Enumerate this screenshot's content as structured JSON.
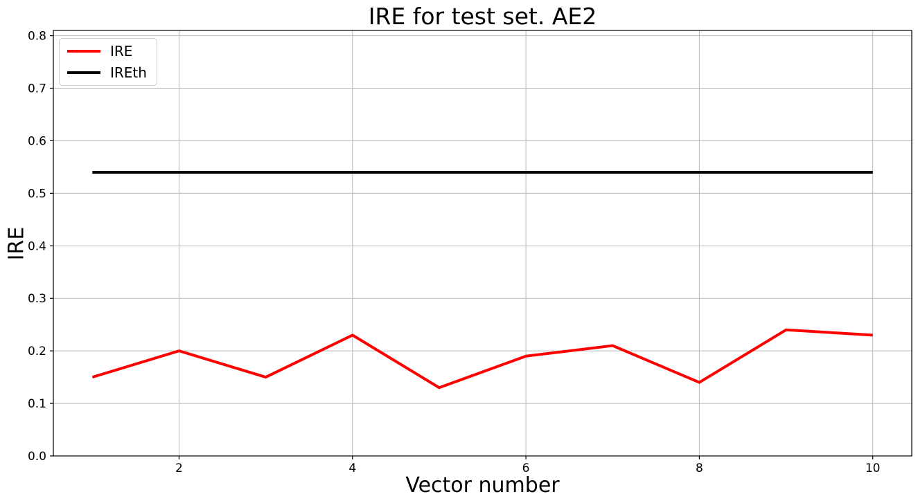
{
  "chart_data": {
    "type": "line",
    "title": "IRE for test set. AE2",
    "xlabel": "Vector number",
    "ylabel": "IRE",
    "x": [
      1,
      2,
      3,
      4,
      5,
      6,
      7,
      8,
      9,
      10
    ],
    "series": [
      {
        "name": "IRE",
        "color": "#ff0000",
        "values": [
          0.15,
          0.2,
          0.15,
          0.23,
          0.13,
          0.19,
          0.21,
          0.14,
          0.24,
          0.23
        ]
      },
      {
        "name": "IREth",
        "color": "#000000",
        "values": [
          0.54,
          0.54,
          0.54,
          0.54,
          0.54,
          0.54,
          0.54,
          0.54,
          0.54,
          0.54
        ]
      }
    ],
    "xlim": [
      0.55,
      10.45
    ],
    "ylim": [
      0,
      0.81
    ],
    "xticks": [
      2,
      4,
      6,
      8,
      10
    ],
    "yticks": [
      0.0,
      0.1,
      0.2,
      0.3,
      0.4,
      0.5,
      0.6,
      0.7,
      0.8
    ],
    "ytick_decimals": 1,
    "grid": true,
    "grid_color": "#b8b8b8",
    "axis_color": "#000000",
    "legend_position": "upper left"
  }
}
